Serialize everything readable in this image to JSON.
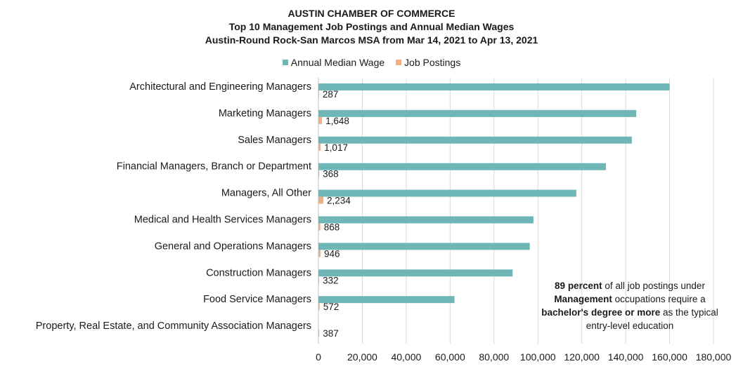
{
  "chart_data": {
    "type": "bar",
    "orientation": "horizontal",
    "title": "AUSTIN CHAMBER OF COMMERCE",
    "subtitle_lines": [
      "Top 10 Management Job Postings and Annual Median Wages",
      "Austin-Round Rock-San Marcos MSA from Mar 14, 2021 to Apr 13, 2021"
    ],
    "categories": [
      "Architectural and Engineering Managers",
      "Marketing Managers",
      "Sales Managers",
      "Financial Managers, Branch or Department",
      "Managers, All Other",
      "Medical and Health Services Managers",
      "General and Operations Managers",
      "Construction Managers",
      "Food Service Managers",
      "Property, Real Estate, and Community Association Managers"
    ],
    "series": [
      {
        "name": "Annual Median Wage",
        "color": "#6fb7b6",
        "values": [
          160000,
          144800,
          142800,
          131000,
          117500,
          98000,
          96300,
          88500,
          62000,
          0
        ]
      },
      {
        "name": "Job Postings",
        "color": "#f0b083",
        "values": [
          287,
          1648,
          1017,
          368,
          2234,
          868,
          946,
          332,
          572,
          387
        ],
        "labels": [
          "287",
          "1,648",
          "1,017",
          "368",
          "2,234",
          "868",
          "946",
          "332",
          "572",
          "387"
        ]
      }
    ],
    "xlim": [
      0,
      180000
    ],
    "xticks": [
      0,
      20000,
      40000,
      60000,
      80000,
      100000,
      120000,
      140000,
      160000,
      180000
    ],
    "xtick_labels": [
      "0",
      "20,000",
      "40,000",
      "60,000",
      "80,000",
      "100,000",
      "120,000",
      "140,000",
      "160,000",
      "180,000"
    ],
    "grid": "vertical",
    "legend_position": "top"
  },
  "note": {
    "line1_bold": "89 percent",
    "line1_rest": " of all job postings under",
    "line2_bold": "Management",
    "line2_rest": " occupations require a",
    "line3_bold": "bachelor's degree or more",
    "line3_rest": " as the typical",
    "line4": "entry-level education"
  }
}
